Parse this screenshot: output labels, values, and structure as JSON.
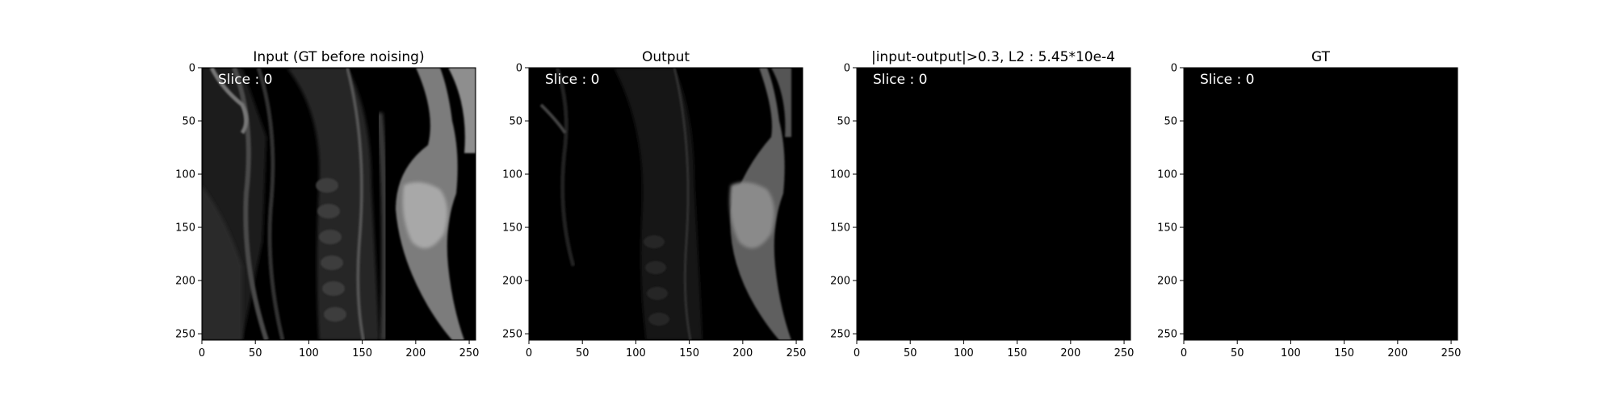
{
  "chart_data": [
    {
      "type": "heatmap",
      "title": "Input (GT before noising)",
      "annotation": "Slice : 0",
      "image_size": [
        256,
        256
      ],
      "xticks": [
        0,
        50,
        100,
        150,
        200,
        250
      ],
      "yticks": [
        0,
        50,
        100,
        150,
        200,
        250
      ],
      "xlim": [
        0,
        256
      ],
      "ylim": [
        256,
        0
      ],
      "content": "mri-neck-sagittal-bright"
    },
    {
      "type": "heatmap",
      "title": "Output",
      "annotation": "Slice : 0",
      "image_size": [
        256,
        256
      ],
      "xticks": [
        0,
        50,
        100,
        150,
        200,
        250
      ],
      "yticks": [
        0,
        50,
        100,
        150,
        200,
        250
      ],
      "xlim": [
        0,
        256
      ],
      "ylim": [
        256,
        0
      ],
      "content": "mri-neck-sagittal-dim"
    },
    {
      "type": "heatmap",
      "title": "|input-output|>0.3, L2 : 5.45*10e-4",
      "annotation": "Slice : 0",
      "image_size": [
        256,
        256
      ],
      "xticks": [
        0,
        50,
        100,
        150,
        200,
        250
      ],
      "yticks": [
        0,
        50,
        100,
        150,
        200,
        250
      ],
      "xlim": [
        0,
        256
      ],
      "ylim": [
        256,
        0
      ],
      "content": "all-black"
    },
    {
      "type": "heatmap",
      "title": "GT",
      "annotation": "Slice : 0",
      "image_size": [
        256,
        256
      ],
      "xticks": [
        0,
        50,
        100,
        150,
        200,
        250
      ],
      "yticks": [
        0,
        50,
        100,
        150,
        200,
        250
      ],
      "xlim": [
        0,
        256
      ],
      "ylim": [
        256,
        0
      ],
      "content": "all-black"
    }
  ],
  "colors": {
    "image_background": "#000000",
    "annotation": "#ffffff",
    "axis": "#000000"
  }
}
